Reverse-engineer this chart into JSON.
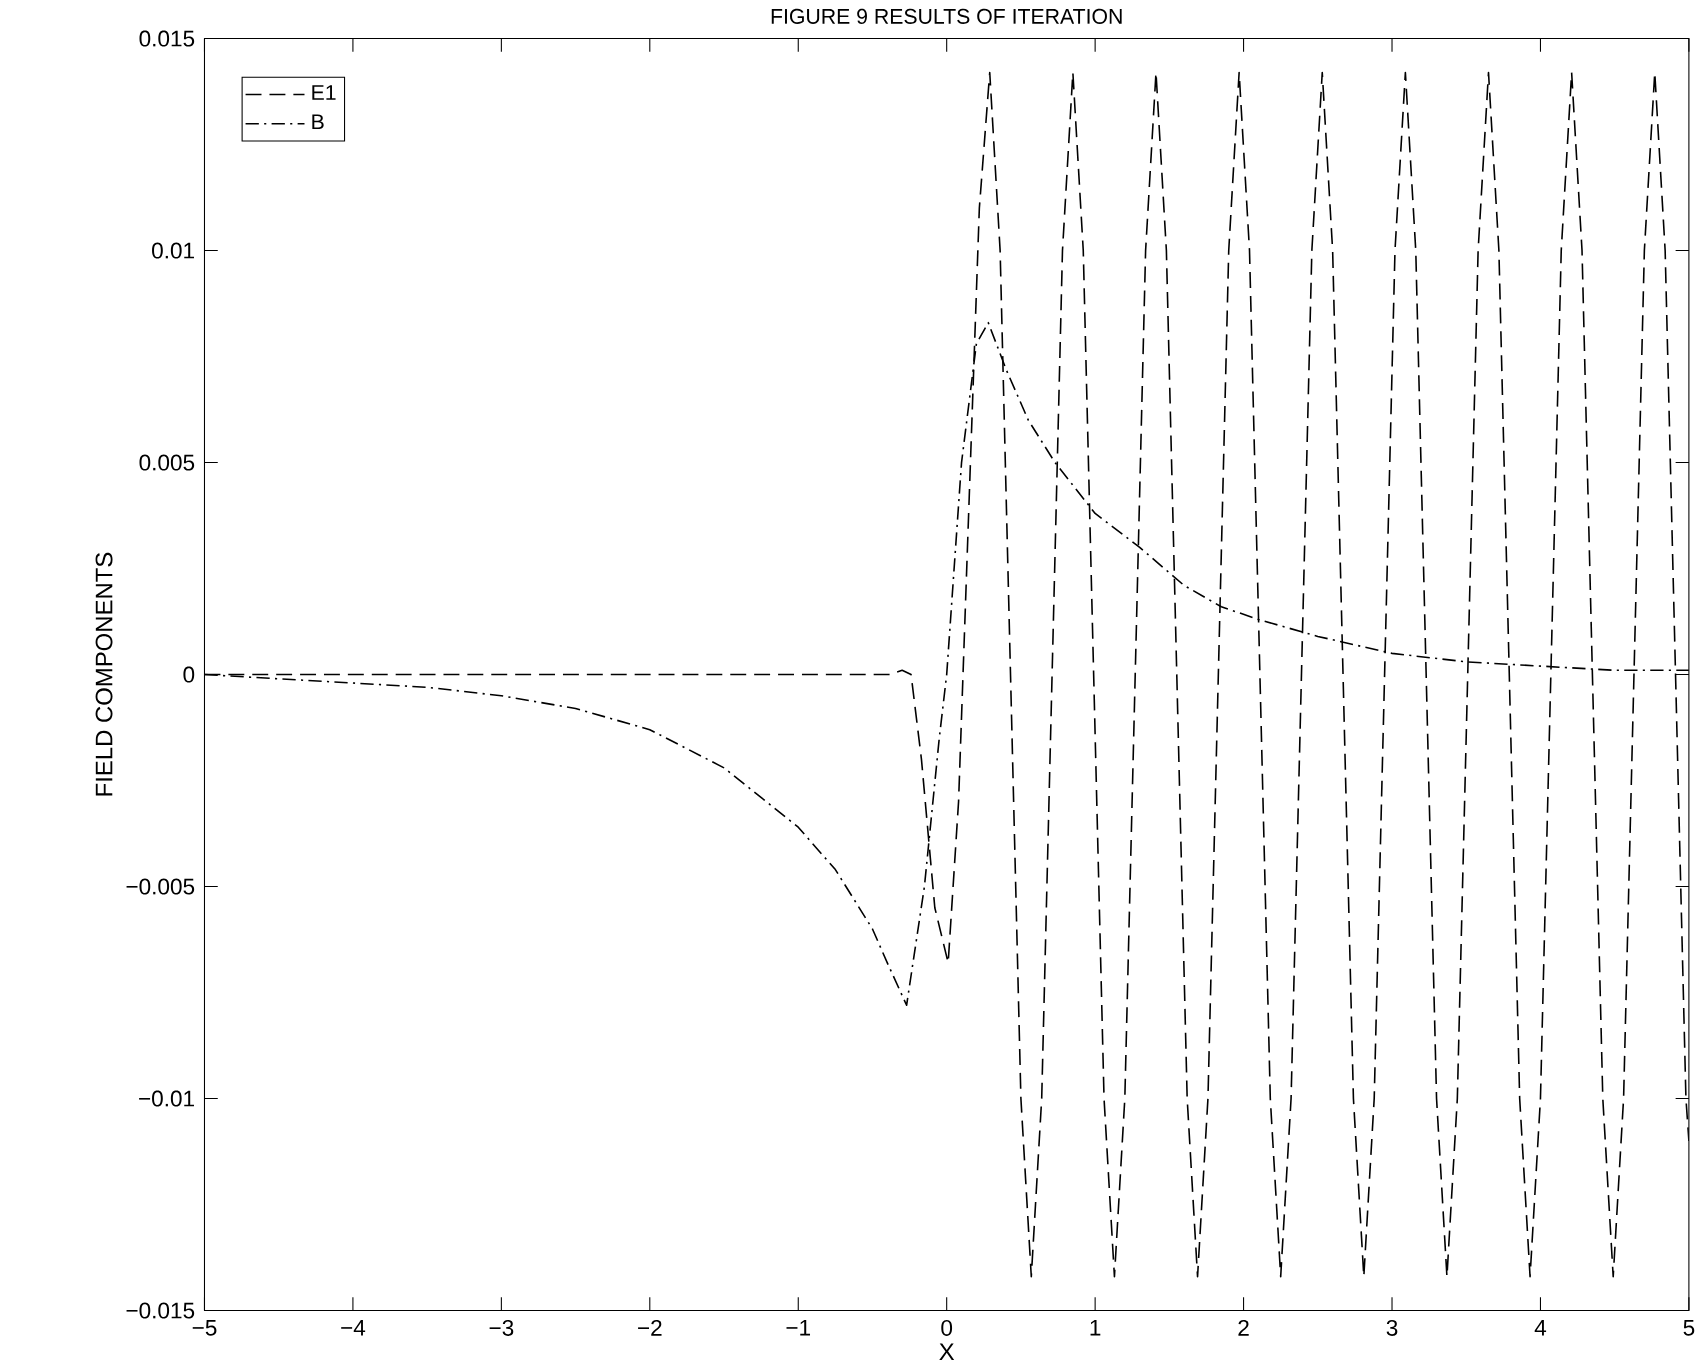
{
  "chart_data": {
    "type": "line",
    "title": "FIGURE 9   RESULTS OF ITERATION",
    "xlabel": "X",
    "ylabel": "FIELD COMPONENTS",
    "xlim": [
      -5,
      5
    ],
    "ylim": [
      -0.015,
      0.015
    ],
    "xticks": [
      {
        "value": -5,
        "label": "−5"
      },
      {
        "value": -4,
        "label": "−4"
      },
      {
        "value": -3,
        "label": "−3"
      },
      {
        "value": -2,
        "label": "−2"
      },
      {
        "value": -1,
        "label": "−1"
      },
      0,
      1,
      2,
      3,
      4,
      5
    ],
    "yticks": [
      {
        "value": -0.015,
        "label": "−0.015"
      },
      {
        "value": -0.01,
        "label": "−0.01"
      },
      {
        "value": -0.005,
        "label": "−0.005"
      },
      0,
      0.005,
      0.01,
      0.015
    ],
    "grid": false,
    "legend": "top left",
    "marker": "none",
    "series": [
      {
        "name": "E1",
        "color": "#000000",
        "line_style": "dashed",
        "x": [
          -5,
          -4,
          -3,
          -2,
          -1,
          -0.5,
          -0.38,
          -0.3,
          -0.24,
          -0.17,
          -0.08,
          0.01,
          0.08,
          0.15,
          0.22,
          0.29,
          0.36,
          0.43,
          0.5,
          0.57,
          0.64,
          0.71,
          0.78,
          0.85,
          0.92,
          0.99,
          1.06,
          1.13,
          1.2,
          1.27,
          1.34,
          1.41,
          1.48,
          1.55,
          1.62,
          1.69,
          1.76,
          1.83,
          1.9,
          1.97,
          2.04,
          2.11,
          2.18,
          2.25,
          2.32,
          2.39,
          2.46,
          2.53,
          2.6,
          2.67,
          2.74,
          2.81,
          2.88,
          2.95,
          3.02,
          3.09,
          3.16,
          3.23,
          3.3,
          3.37,
          3.44,
          3.51,
          3.58,
          3.65,
          3.72,
          3.79,
          3.86,
          3.93,
          4.0,
          4.07,
          4.14,
          4.21,
          4.28,
          4.35,
          4.42,
          4.49,
          4.56,
          4.63,
          4.7,
          4.77,
          4.84,
          4.91,
          4.98,
          5.0
        ],
        "values": [
          0,
          0,
          0,
          0,
          0,
          0,
          0,
          0.0001,
          0,
          -0.002,
          -0.0055,
          -0.0068,
          -0.003,
          0.004,
          0.011,
          0.0142,
          0.01,
          0,
          -0.01,
          -0.0142,
          -0.01,
          0,
          0.01,
          0.0142,
          0.01,
          0,
          -0.01,
          -0.0142,
          -0.01,
          0,
          0.01,
          0.0142,
          0.01,
          0,
          -0.01,
          -0.0142,
          -0.01,
          0,
          0.01,
          0.0142,
          0.01,
          0,
          -0.01,
          -0.0142,
          -0.01,
          0,
          0.01,
          0.0142,
          0.01,
          0,
          -0.01,
          -0.0142,
          -0.01,
          0,
          0.01,
          0.0142,
          0.01,
          0,
          -0.01,
          -0.0142,
          -0.01,
          0,
          0.01,
          0.0142,
          0.01,
          0,
          -0.01,
          -0.0142,
          -0.01,
          0,
          0.01,
          0.0142,
          0.01,
          0,
          -0.01,
          -0.0142,
          -0.01,
          0,
          0.01,
          0.0142,
          0.01,
          0,
          -0.01,
          -0.011
        ]
      },
      {
        "name": "B",
        "color": "#000000",
        "line_style": "dashdot",
        "x": [
          -5,
          -4.5,
          -4,
          -3.5,
          -3,
          -2.5,
          -2,
          -1.5,
          -1,
          -0.75,
          -0.5,
          -0.4,
          -0.27,
          -0.15,
          -0.05,
          0,
          0.1,
          0.2,
          0.28,
          0.4,
          0.55,
          0.73,
          1.0,
          1.3,
          1.6,
          1.85,
          2.1,
          2.5,
          3.0,
          3.5,
          4.0,
          4.5,
          5.0
        ],
        "values": [
          0,
          -0.0001,
          -0.0002,
          -0.0003,
          -0.0005,
          -0.0008,
          -0.0013,
          -0.0022,
          -0.0036,
          -0.0046,
          -0.006,
          -0.0068,
          -0.0078,
          -0.005,
          -0.0015,
          0,
          0.005,
          0.0078,
          0.0083,
          0.0072,
          0.006,
          0.005,
          0.0038,
          0.003,
          0.0021,
          0.0016,
          0.0013,
          0.0009,
          0.0005,
          0.0003,
          0.0002,
          0.0001,
          0.0001
        ]
      }
    ]
  }
}
